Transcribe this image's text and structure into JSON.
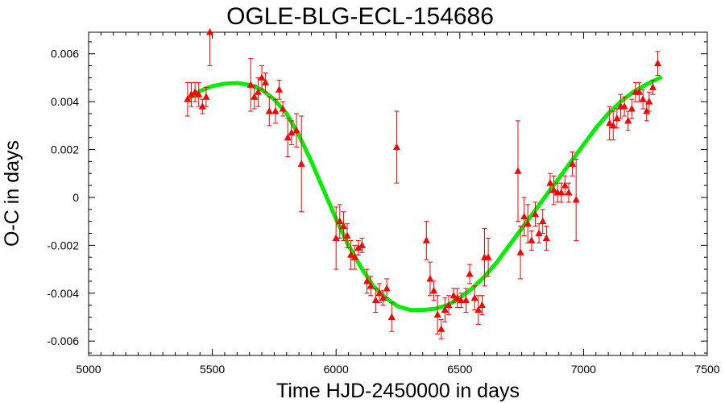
{
  "chart_data": {
    "type": "scatter",
    "title": "OGLE-BLG-ECL-154686",
    "xlabel": "Time HJD-2450000 in days",
    "ylabel": "O-C in days",
    "xlim": [
      5000,
      7500
    ],
    "ylim": [
      -0.0066,
      0.0069
    ],
    "x_ticks": [
      5000,
      5500,
      6000,
      6500,
      7000,
      7500
    ],
    "x_tick_labels": [
      "5000",
      "5500",
      "6000",
      "6500",
      "7000",
      "7500"
    ],
    "y_ticks": [
      -0.006,
      -0.004,
      -0.002,
      0,
      0.002,
      0.004,
      0.006
    ],
    "y_tick_labels": [
      "-0.006",
      "-0.004",
      "-0.002",
      "0",
      "0.002",
      "0.004",
      "0.006"
    ],
    "grid": false,
    "colors": {
      "points": "#ff0000",
      "fit": "#00ee00"
    },
    "series": [
      {
        "kind": "points-with-errorbars",
        "points": [
          {
            "x": 5400,
            "y": 0.0041,
            "err": 0.0007
          },
          {
            "x": 5415,
            "y": 0.0043,
            "err": 0.0005
          },
          {
            "x": 5430,
            "y": 0.0044,
            "err": 0.0004
          },
          {
            "x": 5445,
            "y": 0.0043,
            "err": 0.0005
          },
          {
            "x": 5460,
            "y": 0.0038,
            "err": 0.0003
          },
          {
            "x": 5475,
            "y": 0.0042,
            "err": 0.0004
          },
          {
            "x": 5490,
            "y": 0.0069,
            "err": 0.0014
          },
          {
            "x": 5655,
            "y": 0.0047,
            "err": 0.0011
          },
          {
            "x": 5670,
            "y": 0.0042,
            "err": 0.0005
          },
          {
            "x": 5685,
            "y": 0.0044,
            "err": 0.0006
          },
          {
            "x": 5700,
            "y": 0.005,
            "err": 0.0005
          },
          {
            "x": 5715,
            "y": 0.0048,
            "err": 0.0004
          },
          {
            "x": 5730,
            "y": 0.0036,
            "err": 0.0006
          },
          {
            "x": 5755,
            "y": 0.0036,
            "err": 0.0005
          },
          {
            "x": 5770,
            "y": 0.0045,
            "err": 0.0004
          },
          {
            "x": 5785,
            "y": 0.0037,
            "err": 0.0003
          },
          {
            "x": 5805,
            "y": 0.0025,
            "err": 0.0008
          },
          {
            "x": 5820,
            "y": 0.0027,
            "err": 0.0005
          },
          {
            "x": 5840,
            "y": 0.0028,
            "err": 0.0007
          },
          {
            "x": 5860,
            "y": 0.0014,
            "err": 0.002
          },
          {
            "x": 6000,
            "y": -0.0017,
            "err": 0.0013
          },
          {
            "x": 6015,
            "y": -0.001,
            "err": 0.0007
          },
          {
            "x": 6030,
            "y": -0.0012,
            "err": 0.0006
          },
          {
            "x": 6045,
            "y": -0.0016,
            "err": 0.0005
          },
          {
            "x": 6060,
            "y": -0.0024,
            "err": 0.0006
          },
          {
            "x": 6075,
            "y": -0.0025,
            "err": 0.0005
          },
          {
            "x": 6090,
            "y": -0.0021,
            "err": 0.0003
          },
          {
            "x": 6105,
            "y": -0.002,
            "err": 0.0003
          },
          {
            "x": 6125,
            "y": -0.0035,
            "err": 0.0005
          },
          {
            "x": 6140,
            "y": -0.0037,
            "err": 0.0004
          },
          {
            "x": 6160,
            "y": -0.0043,
            "err": 0.0005
          },
          {
            "x": 6175,
            "y": -0.004,
            "err": 0.0004
          },
          {
            "x": 6190,
            "y": -0.0042,
            "err": 0.0003
          },
          {
            "x": 6205,
            "y": -0.0038,
            "err": 0.0004
          },
          {
            "x": 6225,
            "y": -0.005,
            "err": 0.0006
          },
          {
            "x": 6245,
            "y": 0.0021,
            "err": 0.0015
          },
          {
            "x": 6365,
            "y": -0.0018,
            "err": 0.0008
          },
          {
            "x": 6380,
            "y": -0.0034,
            "err": 0.0007
          },
          {
            "x": 6395,
            "y": -0.0039,
            "err": 0.0004
          },
          {
            "x": 6410,
            "y": -0.0049,
            "err": 0.0008
          },
          {
            "x": 6425,
            "y": -0.0055,
            "err": 0.0004
          },
          {
            "x": 6440,
            "y": -0.0047,
            "err": 0.0005
          },
          {
            "x": 6455,
            "y": -0.0045,
            "err": 0.0004
          },
          {
            "x": 6475,
            "y": -0.0041,
            "err": 0.0003
          },
          {
            "x": 6490,
            "y": -0.0042,
            "err": 0.0004
          },
          {
            "x": 6505,
            "y": -0.0043,
            "err": 0.0003
          },
          {
            "x": 6525,
            "y": -0.0043,
            "err": 0.0005
          },
          {
            "x": 6540,
            "y": -0.0032,
            "err": 0.0004
          },
          {
            "x": 6560,
            "y": -0.0042,
            "err": 0.0005
          },
          {
            "x": 6575,
            "y": -0.0047,
            "err": 0.0006
          },
          {
            "x": 6590,
            "y": -0.0045,
            "err": 0.0004
          },
          {
            "x": 6600,
            "y": -0.0025,
            "err": 0.0012
          },
          {
            "x": 6615,
            "y": -0.0025,
            "err": 0.0008
          },
          {
            "x": 6735,
            "y": 0.0011,
            "err": 0.0021
          },
          {
            "x": 6745,
            "y": -0.0023,
            "err": 0.0011
          },
          {
            "x": 6760,
            "y": -0.0008,
            "err": 0.0008
          },
          {
            "x": 6775,
            "y": -0.0011,
            "err": 0.0008
          },
          {
            "x": 6790,
            "y": -0.0018,
            "err": 0.0004
          },
          {
            "x": 6805,
            "y": -0.0007,
            "err": 0.0005
          },
          {
            "x": 6820,
            "y": -0.0015,
            "err": 0.0004
          },
          {
            "x": 6835,
            "y": -0.001,
            "err": 0.0005
          },
          {
            "x": 6850,
            "y": -0.0017,
            "err": 0.0005
          },
          {
            "x": 6865,
            "y": 0.0006,
            "err": 0.0004
          },
          {
            "x": 6880,
            "y": 0.0003,
            "err": 0.0006
          },
          {
            "x": 6895,
            "y": 0.0002,
            "err": 0.0004
          },
          {
            "x": 6910,
            "y": 0.0002,
            "err": 0.0004
          },
          {
            "x": 6925,
            "y": 0.0005,
            "err": 0.0004
          },
          {
            "x": 6940,
            "y": 0.0002,
            "err": 0.0004
          },
          {
            "x": 6955,
            "y": 0.0014,
            "err": 0.0005
          },
          {
            "x": 6970,
            "y": -0.0001,
            "err": 0.0017
          },
          {
            "x": 7105,
            "y": 0.0031,
            "err": 0.0007
          },
          {
            "x": 7120,
            "y": 0.003,
            "err": 0.0006
          },
          {
            "x": 7135,
            "y": 0.0033,
            "err": 0.0004
          },
          {
            "x": 7150,
            "y": 0.0038,
            "err": 0.0005
          },
          {
            "x": 7165,
            "y": 0.0038,
            "err": 0.0004
          },
          {
            "x": 7180,
            "y": 0.0032,
            "err": 0.0004
          },
          {
            "x": 7195,
            "y": 0.0037,
            "err": 0.0004
          },
          {
            "x": 7210,
            "y": 0.0044,
            "err": 0.0004
          },
          {
            "x": 7225,
            "y": 0.0044,
            "err": 0.0004
          },
          {
            "x": 7240,
            "y": 0.0041,
            "err": 0.0004
          },
          {
            "x": 7255,
            "y": 0.0036,
            "err": 0.0004
          },
          {
            "x": 7265,
            "y": 0.004,
            "err": 0.0004
          },
          {
            "x": 7280,
            "y": 0.0046,
            "err": 0.0003
          },
          {
            "x": 7300,
            "y": 0.0056,
            "err": 0.0005
          }
        ]
      },
      {
        "kind": "fit-line",
        "x": [
          5400,
          5450,
          5500,
          5550,
          5600,
          5650,
          5700,
          5750,
          5800,
          5850,
          5900,
          5950,
          6000,
          6050,
          6100,
          6150,
          6200,
          6250,
          6300,
          6350,
          6400,
          6450,
          6500,
          6550,
          6600,
          6650,
          6700,
          6750,
          6800,
          6850,
          6900,
          6950,
          7000,
          7050,
          7100,
          7150,
          7200,
          7250,
          7310
        ],
        "y": [
          0.0041,
          0.00445,
          0.00465,
          0.00475,
          0.00478,
          0.0047,
          0.0045,
          0.0041,
          0.0035,
          0.0026,
          0.0015,
          0.0003,
          -0.0009,
          -0.002,
          -0.0029,
          -0.0037,
          -0.0042,
          -0.00455,
          -0.0047,
          -0.0047,
          -0.00465,
          -0.0045,
          -0.0042,
          -0.0038,
          -0.0033,
          -0.0027,
          -0.002,
          -0.0013,
          -0.0006,
          0.0001,
          0.0008,
          0.0015,
          0.0022,
          0.0029,
          0.0035,
          0.004,
          0.0044,
          0.0047,
          0.005
        ]
      }
    ]
  }
}
